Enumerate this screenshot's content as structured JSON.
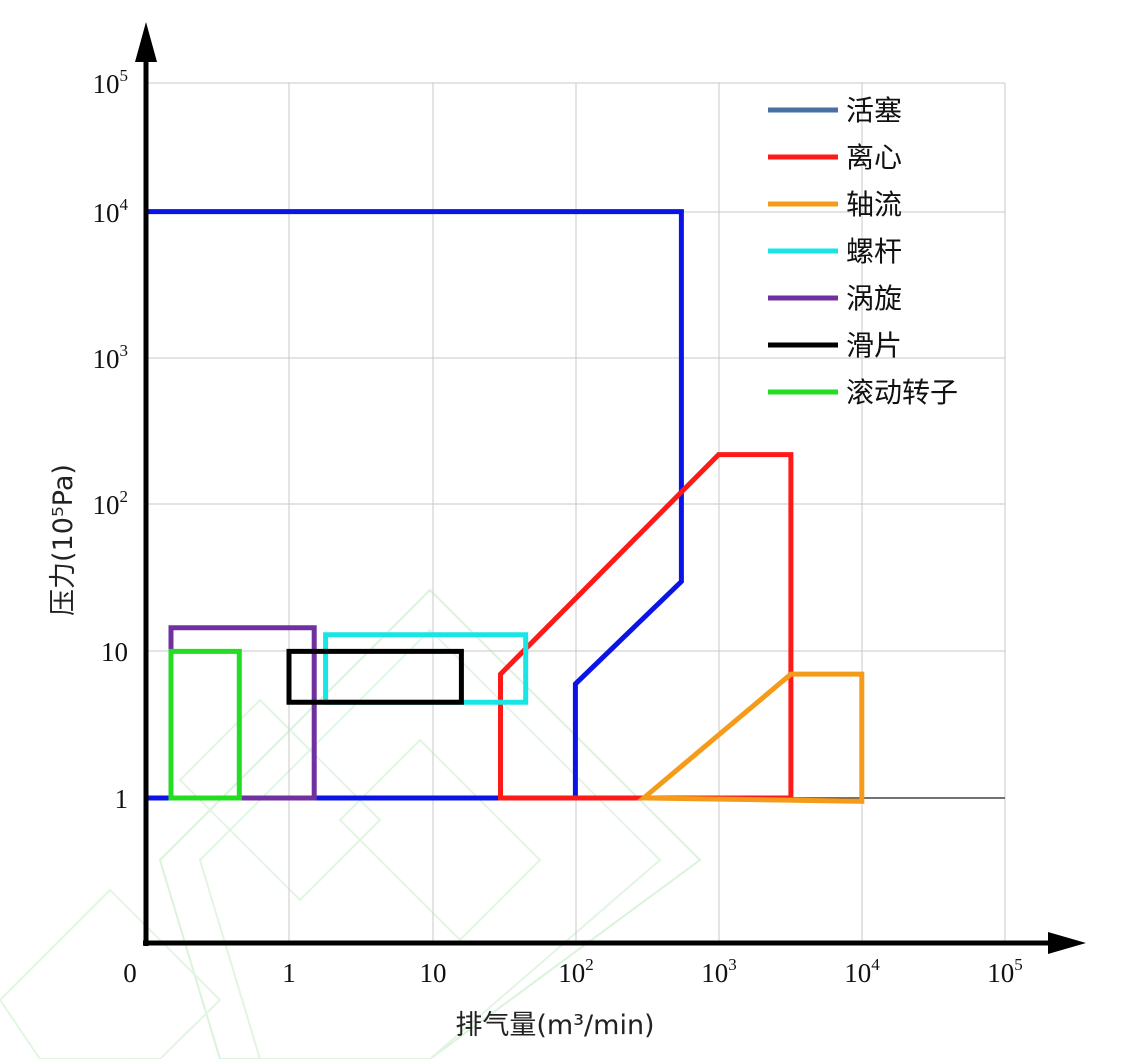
{
  "chart_data": {
    "type": "area",
    "xlabel": "排气量(m³/min)",
    "ylabel": "压力(10⁵Pa)",
    "x_scale": "log",
    "y_scale": "log",
    "x_ticks": [
      {
        "base": "0",
        "exp": ""
      },
      {
        "base": "1",
        "exp": ""
      },
      {
        "base": "10",
        "exp": ""
      },
      {
        "base": "10",
        "exp": "2"
      },
      {
        "base": "10",
        "exp": "3"
      },
      {
        "base": "10",
        "exp": "4"
      },
      {
        "base": "10",
        "exp": "5"
      }
    ],
    "y_ticks": [
      {
        "base": "1",
        "exp": ""
      },
      {
        "base": "10",
        "exp": ""
      },
      {
        "base": "10",
        "exp": "2"
      },
      {
        "base": "10",
        "exp": "3"
      },
      {
        "base": "10",
        "exp": "4"
      },
      {
        "base": "10",
        "exp": "5"
      }
    ],
    "grid": true,
    "legend_position": "top-right",
    "legend_entries": [
      {
        "label": "活塞",
        "color": "#4a6fa5"
      },
      {
        "label": "离心",
        "color": "#ff1a1a"
      },
      {
        "label": "轴流",
        "color": "#f59b1a"
      },
      {
        "label": "螺杆",
        "color": "#1ae5e5"
      },
      {
        "label": "涡旋",
        "color": "#7030a0"
      },
      {
        "label": "滑片",
        "color": "#000000"
      },
      {
        "label": "滚动转子",
        "color": "#22dd22"
      }
    ],
    "regions": [
      {
        "name": "活塞",
        "color": "#0a14e6",
        "points": [
          [
            0.1,
            1
          ],
          [
            0.1,
            10000
          ],
          [
            550,
            10000
          ],
          [
            550,
            30
          ],
          [
            100,
            6
          ],
          [
            100,
            1
          ]
        ]
      },
      {
        "name": "离心",
        "color": "#ff1a1a",
        "points": [
          [
            30,
            1
          ],
          [
            30,
            7
          ],
          [
            1000,
            220
          ],
          [
            3200,
            220
          ],
          [
            3200,
            1
          ]
        ]
      },
      {
        "name": "轴流",
        "color": "#f59b1a",
        "points": [
          [
            300,
            1
          ],
          [
            3200,
            7
          ],
          [
            10000,
            7
          ],
          [
            10000,
            0.95
          ]
        ]
      },
      {
        "name": "螺杆",
        "color": "#1ae5e5",
        "points": [
          [
            1.8,
            4.5
          ],
          [
            1.8,
            13
          ],
          [
            45,
            13
          ],
          [
            45,
            4.5
          ]
        ]
      },
      {
        "name": "涡旋",
        "color": "#7030a0",
        "points": [
          [
            0.15,
            1
          ],
          [
            0.15,
            14.5
          ],
          [
            1.5,
            14.5
          ],
          [
            1.5,
            1
          ]
        ]
      },
      {
        "name": "滑片",
        "color": "#000000",
        "points": [
          [
            1,
            4.5
          ],
          [
            1,
            10
          ],
          [
            16,
            10
          ],
          [
            16,
            4.5
          ]
        ]
      },
      {
        "name": "滚动转子",
        "color": "#22dd22",
        "points": [
          [
            0.15,
            1
          ],
          [
            0.15,
            10
          ],
          [
            0.45,
            10
          ],
          [
            0.45,
            1
          ]
        ]
      }
    ]
  }
}
